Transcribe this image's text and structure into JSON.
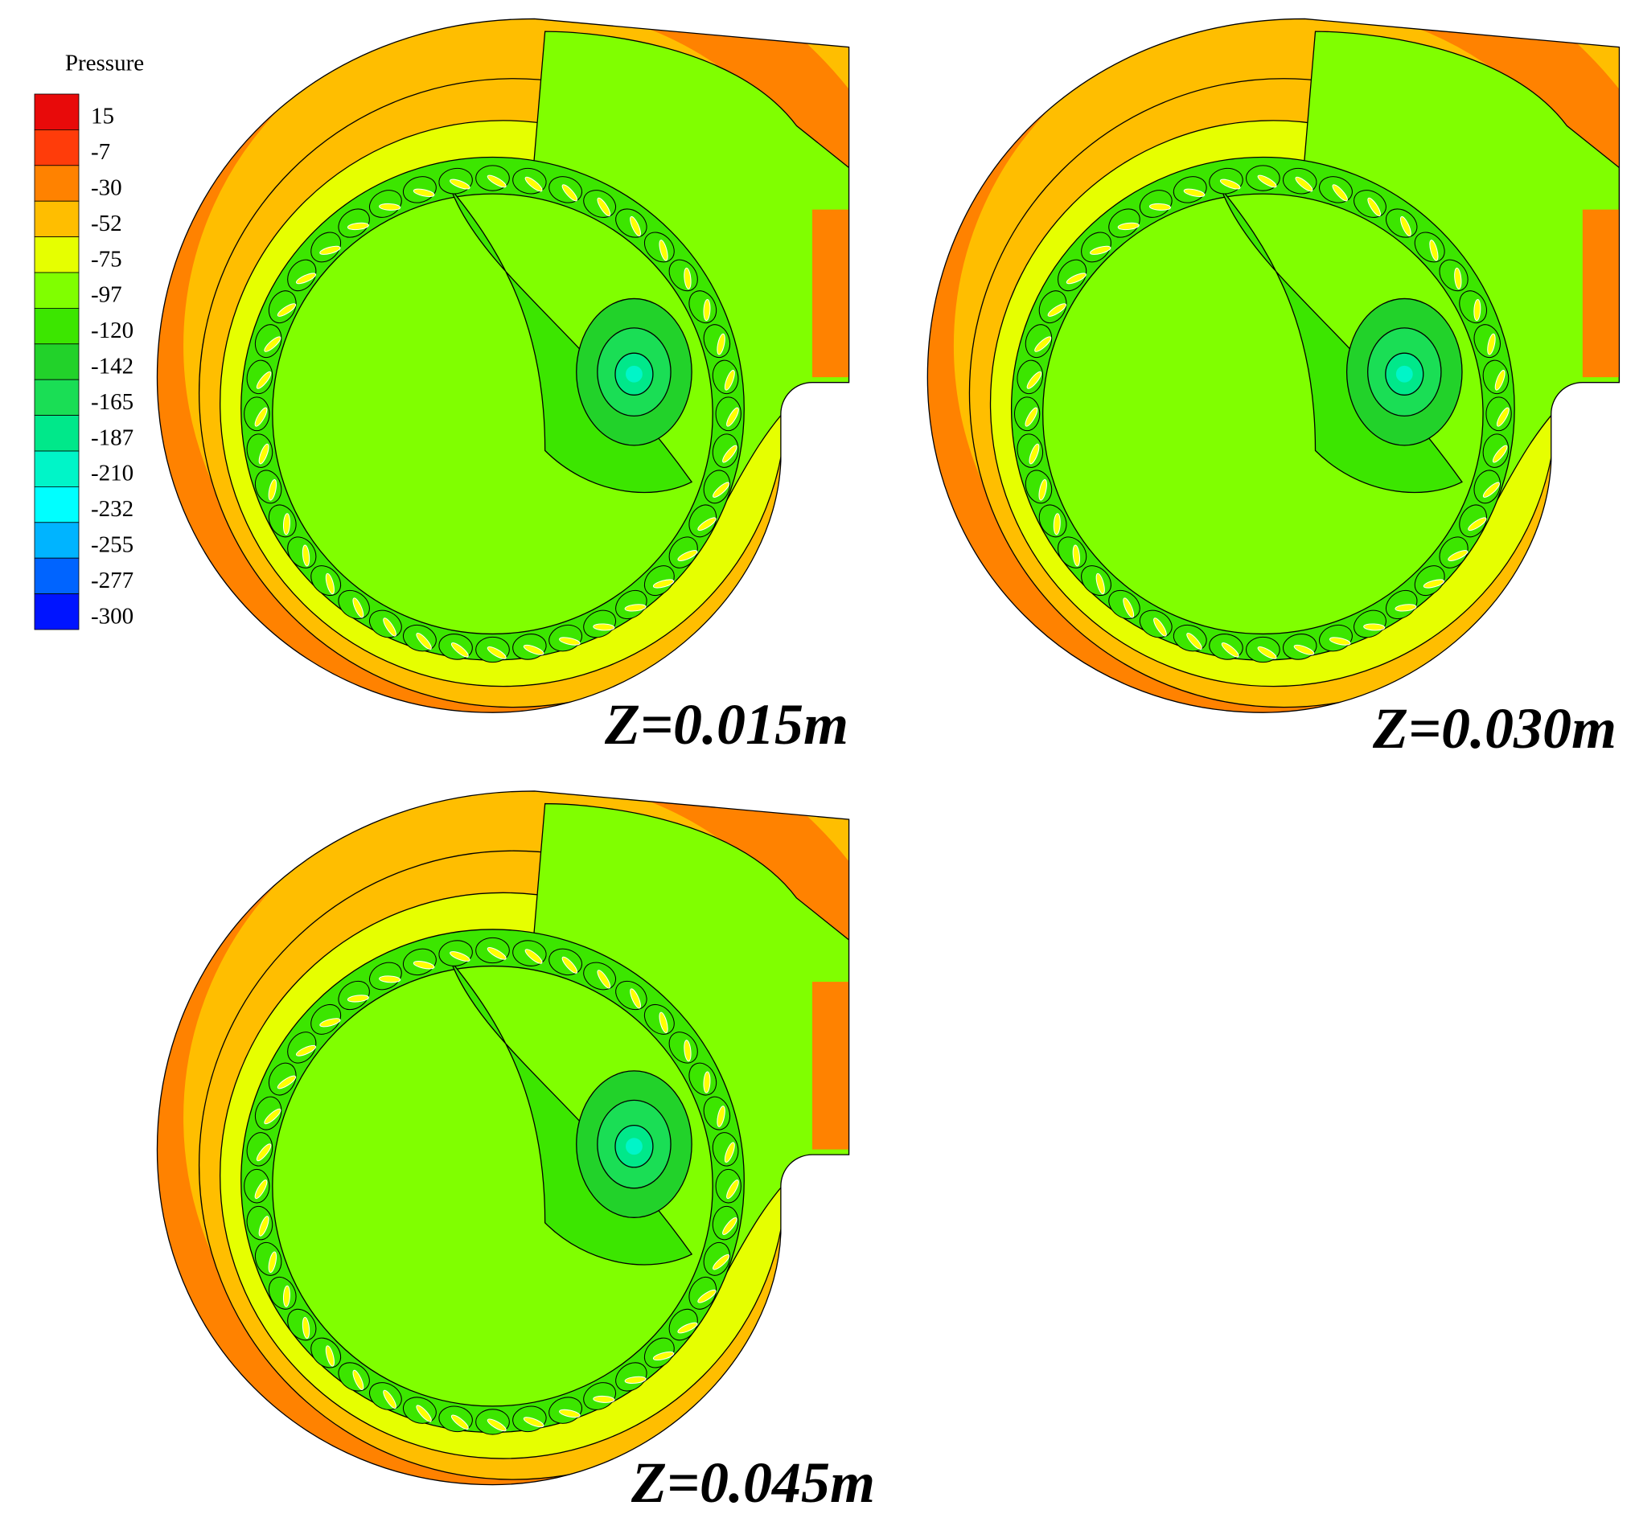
{
  "legend": {
    "title": "Pressure",
    "levels": [
      15,
      -7,
      -30,
      -52,
      -75,
      -97,
      -120,
      -142,
      -165,
      -187,
      -210,
      -232,
      -255,
      -277,
      -300
    ],
    "colors": [
      "#e80a0a",
      "#ff3c0a",
      "#ff8200",
      "#ffbe00",
      "#e6ff00",
      "#80ff00",
      "#3ce600",
      "#22d22a",
      "#1ade55",
      "#00e88a",
      "#00f5c8",
      "#00ffff",
      "#00b4ff",
      "#0064ff",
      "#0014ff"
    ]
  },
  "panels": [
    {
      "label": "Z=0.015m"
    },
    {
      "label": "Z=0.030m"
    },
    {
      "label": "Z=0.045m"
    }
  ]
}
